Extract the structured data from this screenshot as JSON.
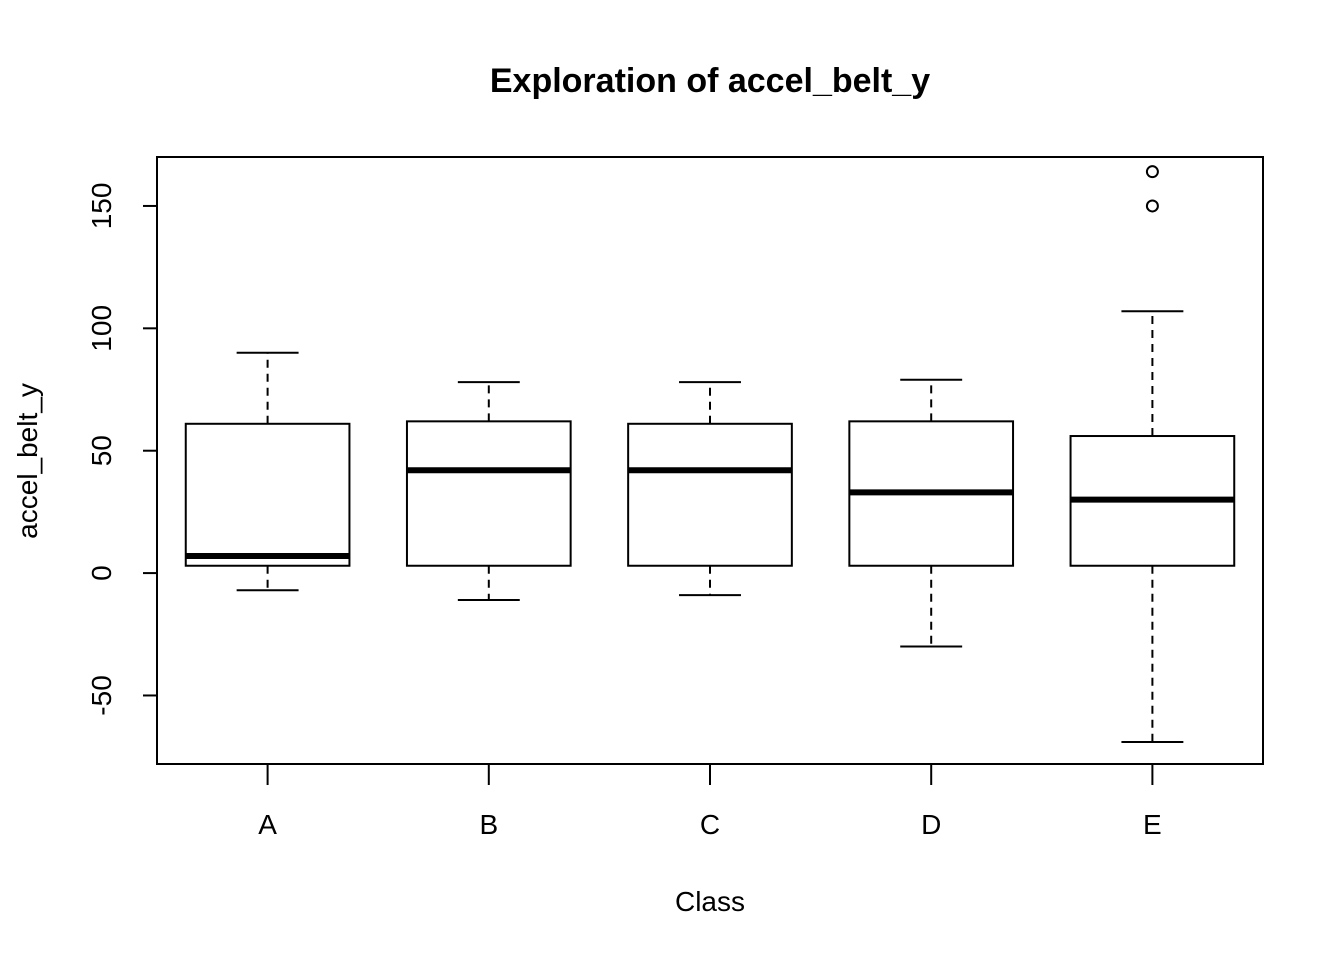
{
  "chart_data": {
    "type": "boxplot",
    "title": "Exploration of  accel_belt_y",
    "xlabel": "Class",
    "ylabel": "accel_belt_y",
    "ylim": [
      -78,
      170
    ],
    "yticks": [
      -50,
      0,
      50,
      100,
      150
    ],
    "ytick_labels": [
      "-50",
      "0",
      "50",
      "100",
      "150"
    ],
    "categories": [
      "A",
      "B",
      "C",
      "D",
      "E"
    ],
    "boxes": [
      {
        "category": "A",
        "whisker_low": -7,
        "q1": 3,
        "median": 7,
        "q3": 61,
        "whisker_high": 90,
        "outliers": []
      },
      {
        "category": "B",
        "whisker_low": -11,
        "q1": 3,
        "median": 42,
        "q3": 62,
        "whisker_high": 78,
        "outliers": []
      },
      {
        "category": "C",
        "whisker_low": -9,
        "q1": 3,
        "median": 42,
        "q3": 61,
        "whisker_high": 78,
        "outliers": []
      },
      {
        "category": "D",
        "whisker_low": -30,
        "q1": 3,
        "median": 33,
        "q3": 62,
        "whisker_high": 79,
        "outliers": []
      },
      {
        "category": "E",
        "whisker_low": -69,
        "q1": 3,
        "median": 30,
        "q3": 56,
        "whisker_high": 107,
        "outliers": [
          150,
          164
        ]
      }
    ],
    "grid": false,
    "legend": "none"
  }
}
